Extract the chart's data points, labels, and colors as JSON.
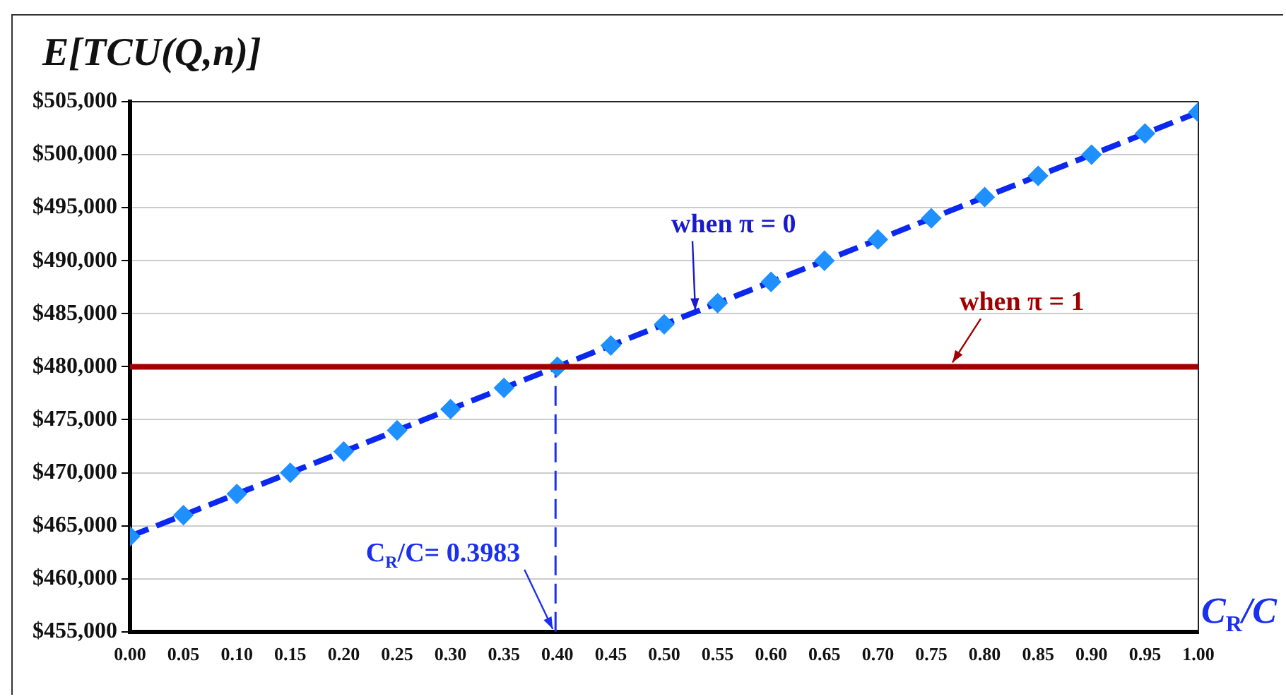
{
  "chart_data": {
    "type": "line",
    "title": "E[TCU(Q,n)]",
    "xlabel": "C$_{R}$/C",
    "x": [
      0,
      0.05,
      0.1,
      0.15,
      0.2,
      0.25,
      0.3,
      0.35,
      0.4,
      0.45,
      0.5,
      0.55,
      0.6,
      0.65,
      0.7,
      0.75,
      0.8,
      0.85,
      0.9,
      0.95,
      1
    ],
    "series": [
      {
        "name": "when π = 1",
        "color": "#a00000",
        "marker": "none",
        "line_style": "solid",
        "values": [
          480000,
          480000,
          480000,
          480000,
          480000,
          480000,
          480000,
          480000,
          480000,
          480000,
          480000,
          480000,
          480000,
          480000,
          480000,
          480000,
          480000,
          480000,
          480000,
          480000,
          480000
        ]
      },
      {
        "name": "when π = 0",
        "color": "#0a28f0",
        "values": [
          464000,
          466000,
          468000,
          470000,
          472000,
          474000,
          476000,
          478000,
          480000,
          482000,
          484000,
          486000,
          488000,
          490000,
          492000,
          494000,
          496000,
          498000,
          500000,
          502000,
          504000
        ]
      }
    ],
    "marker": "diamond",
    "line_style": "dashed",
    "grid": "y",
    "legend": false,
    "xlim": [
      0,
      1
    ],
    "xticks": [
      {
        "value": 0,
        "label": "0.00"
      },
      {
        "value": 0.05,
        "label": "0.05"
      },
      {
        "value": 0.1,
        "label": "0.10"
      },
      {
        "value": 0.15,
        "label": "0.15"
      },
      {
        "value": 0.2,
        "label": "0.20"
      },
      {
        "value": 0.25,
        "label": "0.25"
      },
      {
        "value": 0.3,
        "label": "0.30"
      },
      {
        "value": 0.35,
        "label": "0.35"
      },
      {
        "value": 0.4,
        "label": "0.40"
      },
      {
        "value": 0.45,
        "label": "0.45"
      },
      {
        "value": 0.5,
        "label": "0.50"
      },
      {
        "value": 0.55,
        "label": "0.55"
      },
      {
        "value": 0.6,
        "label": "0.60"
      },
      {
        "value": 0.65,
        "label": "0.65"
      },
      {
        "value": 0.7,
        "label": "0.70"
      },
      {
        "value": 0.75,
        "label": "0.75"
      },
      {
        "value": 0.8,
        "label": "0.80"
      },
      {
        "value": 0.85,
        "label": "0.85"
      },
      {
        "value": 0.9,
        "label": "0.90"
      },
      {
        "value": 0.95,
        "label": "0.95"
      },
      {
        "value": 1,
        "label": "1.00"
      }
    ],
    "ylim": [
      455000,
      505000
    ],
    "yticks": [
      {
        "value": 455000,
        "label": "$455,000"
      },
      {
        "value": 460000,
        "label": "$460,000"
      },
      {
        "value": 465000,
        "label": "$465,000"
      },
      {
        "value": 470000,
        "label": "$470,000"
      },
      {
        "value": 475000,
        "label": "$475,000"
      },
      {
        "value": 480000,
        "label": "$480,000"
      },
      {
        "value": 485000,
        "label": "$485,000"
      },
      {
        "value": 490000,
        "label": "$490,000"
      },
      {
        "value": 495000,
        "label": "$495,000"
      },
      {
        "value": 500000,
        "label": "$500,000"
      },
      {
        "value": 505000,
        "label": "$505,000"
      }
    ],
    "ref_lines": [
      {
        "axis": "x",
        "value": 0.3983,
        "label": "C$_{R}$/C= 0.3983",
        "color": "#1a2ff0",
        "line_style": "dashed"
      }
    ]
  }
}
